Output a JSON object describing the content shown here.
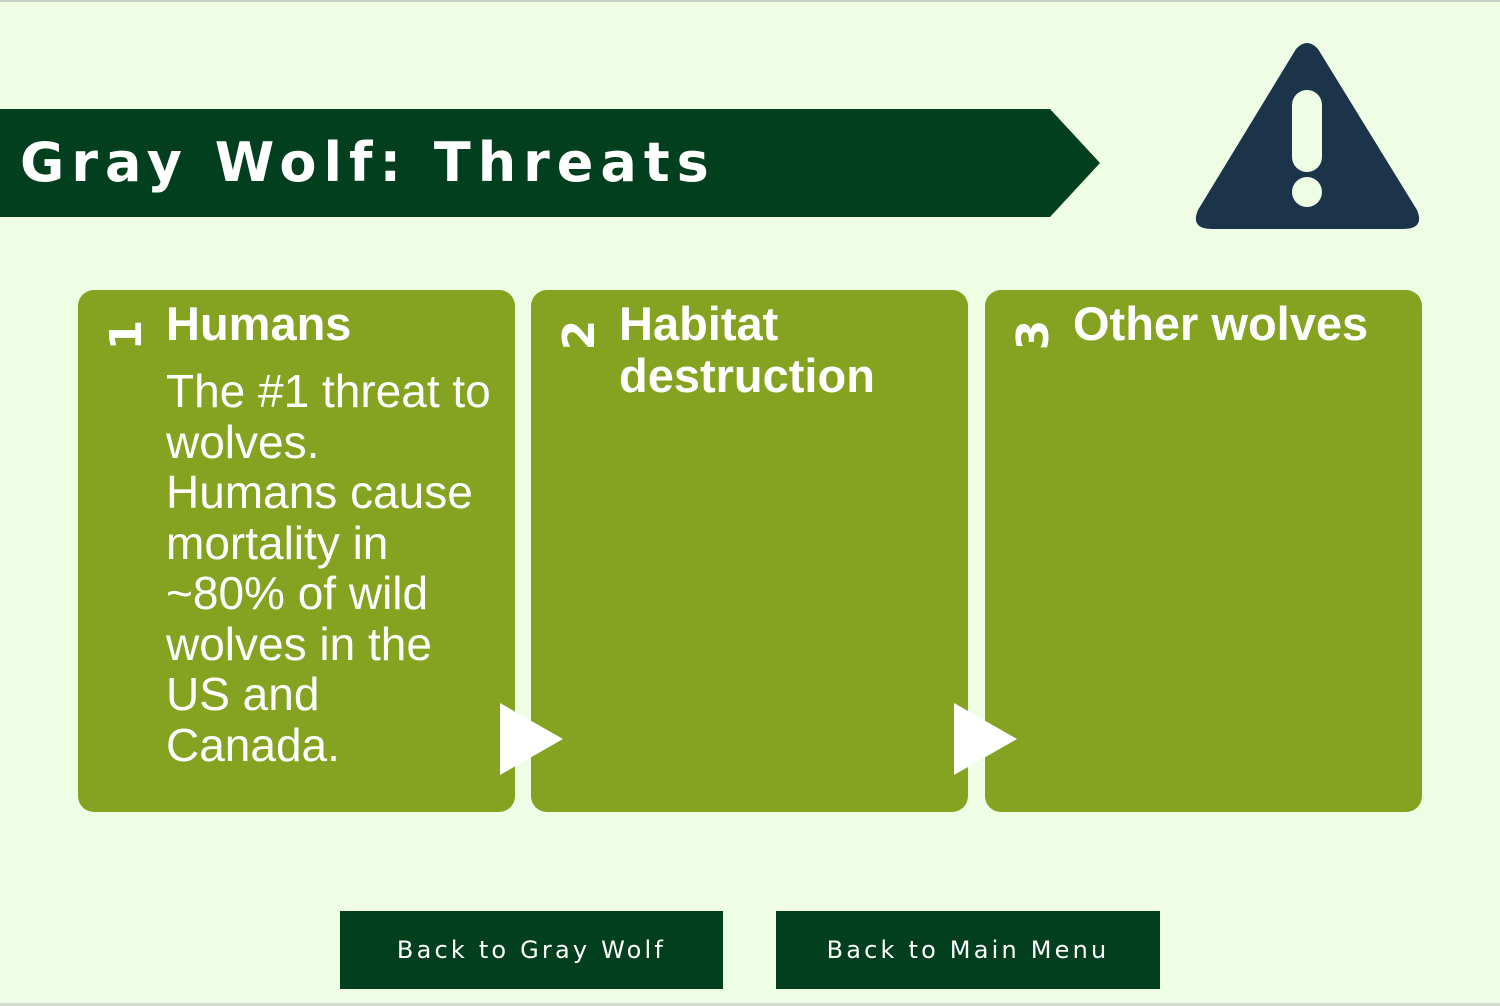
{
  "colors": {
    "background": "#eefde3",
    "banner": "#013f1f",
    "banner_text": "#ffffff",
    "warning_icon": "#1c3449",
    "card": "#85a220",
    "card_text": "#ffffff",
    "arrow": "#ffffff",
    "button_bg": "#013f1f",
    "button_text": "#ffffff"
  },
  "header": {
    "title": "Gray Wolf: Threats",
    "icon": "warning-triangle-icon"
  },
  "cards": [
    {
      "number": "1",
      "heading": "Humans",
      "body": "The #1 threat to wolves. Humans cause mortality in ~80% of wild wolves in the US and Canada."
    },
    {
      "number": "2",
      "heading": "Habitat destruction",
      "body": ""
    },
    {
      "number": "3",
      "heading": "Other wolves",
      "body": ""
    }
  ],
  "buttons": {
    "back_gray_wolf": "Back to Gray Wolf",
    "back_main_menu": "Back to Main Menu"
  }
}
